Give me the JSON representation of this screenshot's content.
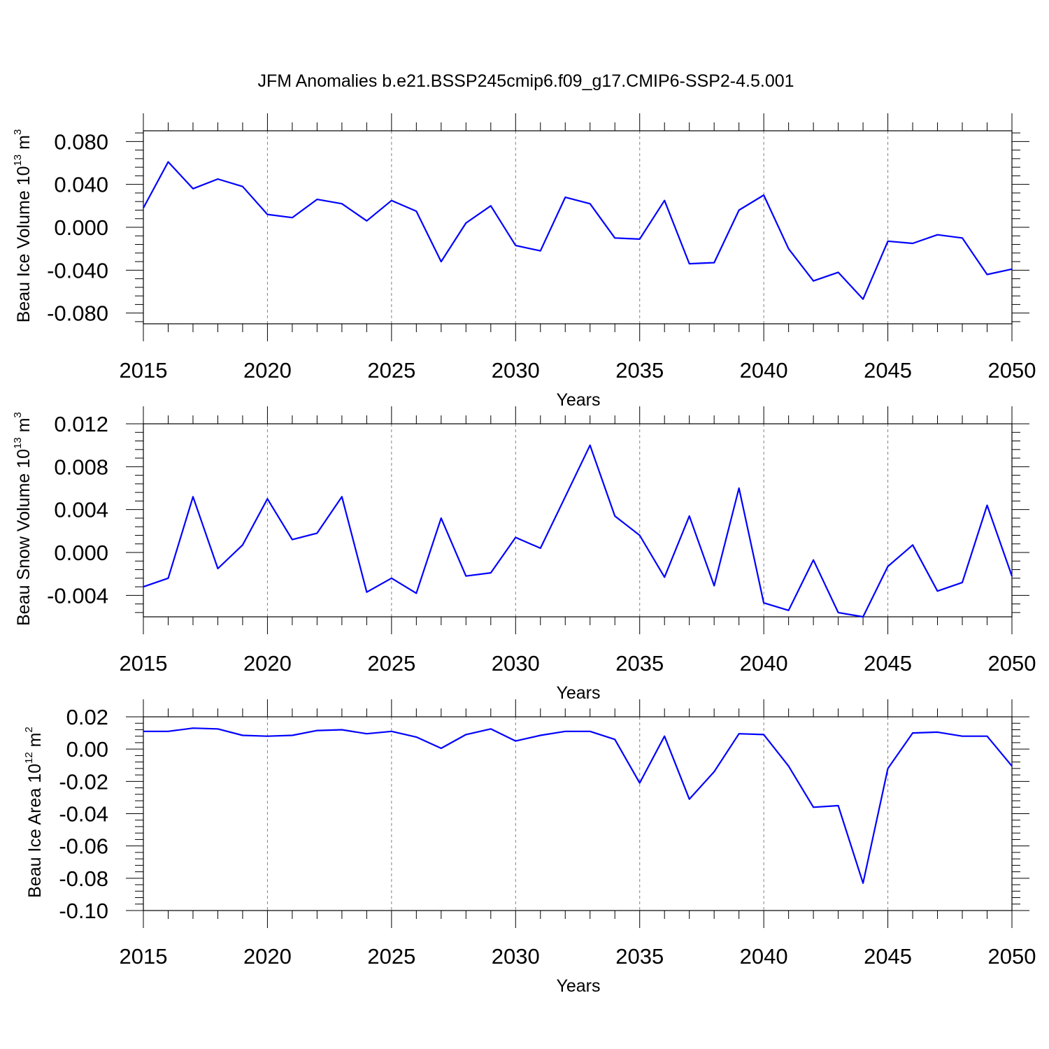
{
  "chart_data": [
    {
      "type": "line",
      "title": "JFM Anomalies b.e21.BSSP245cmip6.f09_g17.CMIP6-SSP2-4.5.001",
      "ylabel": "Beau Ice Volume 10",
      "ylabel_exponent": "13",
      "ylabel_unit": " m",
      "ylabel_unit_exponent": "3",
      "xlabel": "Years",
      "xlim": [
        2015,
        2050
      ],
      "ylim": [
        -0.09,
        0.09
      ],
      "yticks": [
        -0.08,
        -0.04,
        0.0,
        0.04,
        0.08
      ],
      "ytick_labels": [
        "-0.080",
        "-0.040",
        "0.000",
        "0.040",
        "0.080"
      ],
      "xticks": [
        2015,
        2020,
        2025,
        2030,
        2035,
        2040,
        2045,
        2050
      ],
      "xtick_labels": [
        "2015",
        "2020",
        "2025",
        "2030",
        "2035",
        "2040",
        "2045",
        "2050"
      ],
      "grid": "vertical dashed at major x ticks",
      "series": [
        {
          "name": "Beau Ice Volume",
          "color": "#0000ff",
          "x": [
            2015,
            2016,
            2017,
            2018,
            2019,
            2020,
            2021,
            2022,
            2023,
            2024,
            2025,
            2026,
            2027,
            2028,
            2029,
            2030,
            2031,
            2032,
            2033,
            2034,
            2035,
            2036,
            2037,
            2038,
            2039,
            2040,
            2041,
            2042,
            2043,
            2044,
            2045,
            2046,
            2047,
            2048,
            2049,
            2050
          ],
          "values": [
            0.018,
            0.061,
            0.036,
            0.045,
            0.038,
            0.012,
            0.009,
            0.026,
            0.022,
            0.006,
            0.025,
            0.015,
            -0.032,
            0.004,
            0.02,
            -0.017,
            -0.022,
            0.028,
            0.022,
            -0.01,
            -0.011,
            0.025,
            -0.034,
            -0.033,
            0.016,
            0.03,
            -0.02,
            -0.05,
            -0.042,
            -0.067,
            -0.013,
            -0.015,
            -0.007,
            -0.01,
            -0.044,
            -0.039
          ]
        }
      ]
    },
    {
      "type": "line",
      "ylabel": "Beau Snow Volume 10",
      "ylabel_exponent": "13",
      "ylabel_unit": " m",
      "ylabel_unit_exponent": "3",
      "xlabel": "Years",
      "xlim": [
        2015,
        2050
      ],
      "ylim": [
        -0.006,
        0.012
      ],
      "yticks": [
        -0.004,
        0.0,
        0.004,
        0.008,
        0.012
      ],
      "ytick_labels": [
        "-0.004",
        "0.000",
        "0.004",
        "0.008",
        "0.012"
      ],
      "xticks": [
        2015,
        2020,
        2025,
        2030,
        2035,
        2040,
        2045,
        2050
      ],
      "xtick_labels": [
        "2015",
        "2020",
        "2025",
        "2030",
        "2035",
        "2040",
        "2045",
        "2050"
      ],
      "grid": "vertical dashed at major x ticks",
      "series": [
        {
          "name": "Beau Snow Volume",
          "color": "#0000ff",
          "x": [
            2015,
            2016,
            2017,
            2018,
            2019,
            2020,
            2021,
            2022,
            2023,
            2024,
            2025,
            2026,
            2027,
            2028,
            2029,
            2030,
            2031,
            2032,
            2033,
            2034,
            2035,
            2036,
            2037,
            2038,
            2039,
            2040,
            2041,
            2042,
            2043,
            2044,
            2045,
            2046,
            2047,
            2048,
            2049,
            2050
          ],
          "values": [
            -0.0032,
            -0.0024,
            0.0052,
            -0.0015,
            0.0007,
            0.005,
            0.0012,
            0.0018,
            0.0052,
            -0.0037,
            -0.0024,
            -0.0038,
            0.0032,
            -0.0022,
            -0.0019,
            0.0014,
            0.0004,
            0.0052,
            0.01,
            0.0034,
            0.0016,
            -0.0023,
            0.0034,
            -0.0031,
            0.006,
            -0.0047,
            -0.0054,
            -0.0007,
            -0.0056,
            -0.006,
            -0.0013,
            0.0007,
            -0.0036,
            -0.0028,
            0.0044,
            -0.0022
          ]
        }
      ]
    },
    {
      "type": "line",
      "ylabel": "Beau Ice Area 10",
      "ylabel_exponent": "12",
      "ylabel_unit": " m",
      "ylabel_unit_exponent": "2",
      "xlabel": "Years",
      "xlim": [
        2015,
        2050
      ],
      "ylim": [
        -0.1,
        0.02
      ],
      "yticks": [
        -0.1,
        -0.08,
        -0.06,
        -0.04,
        -0.02,
        0.0,
        0.02
      ],
      "ytick_labels": [
        "-0.10",
        "-0.08",
        "-0.06",
        "-0.04",
        "-0.02",
        "0.00",
        "0.02"
      ],
      "xticks": [
        2015,
        2020,
        2025,
        2030,
        2035,
        2040,
        2045,
        2050
      ],
      "xtick_labels": [
        "2015",
        "2020",
        "2025",
        "2030",
        "2035",
        "2040",
        "2045",
        "2050"
      ],
      "grid": "vertical dashed at major x ticks",
      "series": [
        {
          "name": "Beau Ice Area",
          "color": "#0000ff",
          "x": [
            2015,
            2016,
            2017,
            2018,
            2019,
            2020,
            2021,
            2022,
            2023,
            2024,
            2025,
            2026,
            2027,
            2028,
            2029,
            2030,
            2031,
            2032,
            2033,
            2034,
            2035,
            2036,
            2037,
            2038,
            2039,
            2040,
            2041,
            2042,
            2043,
            2044,
            2045,
            2046,
            2047,
            2048,
            2049,
            2050
          ],
          "values": [
            0.011,
            0.011,
            0.013,
            0.0125,
            0.0085,
            0.008,
            0.0085,
            0.0115,
            0.012,
            0.0095,
            0.011,
            0.0075,
            0.0005,
            0.009,
            0.0125,
            0.005,
            0.0085,
            0.011,
            0.011,
            0.006,
            -0.021,
            0.008,
            -0.031,
            -0.014,
            0.0095,
            0.009,
            -0.0105,
            -0.036,
            -0.035,
            -0.083,
            -0.012,
            0.01,
            0.0105,
            0.008,
            0.008,
            -0.0105
          ]
        }
      ]
    }
  ]
}
